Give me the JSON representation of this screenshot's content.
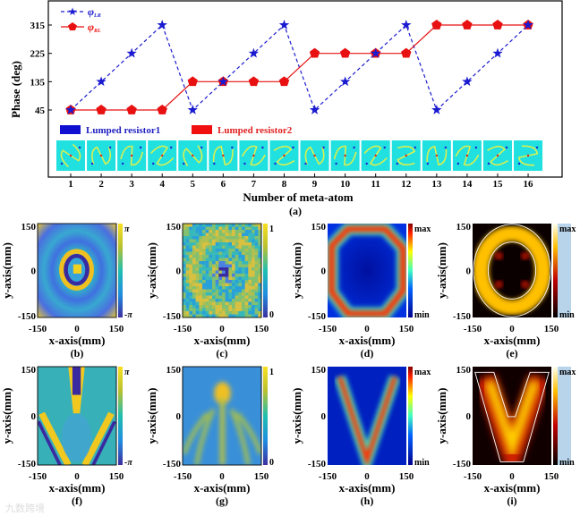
{
  "chart_data": {
    "type": "line",
    "title": "",
    "xlabel": "Number of meta-atom",
    "ylabel": "Phase (deg)",
    "panel_label": "(a)",
    "x": [
      1,
      2,
      3,
      4,
      5,
      6,
      7,
      8,
      9,
      10,
      11,
      12,
      13,
      14,
      15,
      16
    ],
    "yticks": [
      45,
      135,
      225,
      315
    ],
    "ylim": [
      0,
      360
    ],
    "series": [
      {
        "name": "φLR",
        "symbol": "φ",
        "subscript": "LR",
        "color": "#1a1ad0",
        "style": "dashed",
        "marker": "star",
        "values": [
          45,
          135,
          225,
          315,
          45,
          135,
          225,
          315,
          45,
          135,
          225,
          315,
          45,
          135,
          225,
          315
        ]
      },
      {
        "name": "φRL",
        "symbol": "φ",
        "subscript": "RL",
        "color": "#e81010",
        "style": "solid",
        "marker": "pentagon",
        "values": [
          45,
          45,
          45,
          45,
          135,
          135,
          135,
          135,
          225,
          225,
          225,
          225,
          315,
          315,
          315,
          315
        ]
      }
    ],
    "legend_position": "top-left",
    "resistor_legend": [
      {
        "label": "Lumped resistor1",
        "color": "#1010d0"
      },
      {
        "label": "Lumped resistor2",
        "color": "#f01010"
      }
    ]
  },
  "panels": {
    "xlabel": "x-axis(mm)",
    "ylabel": "y-axis(mm)",
    "tick_min": "-150",
    "tick_mid": "0",
    "tick_max": "150",
    "phase_max": "π",
    "phase_min": "-π",
    "amp_max": "1",
    "amp_min": "0",
    "int_max": "max",
    "int_min": "min",
    "labels": [
      "(b)",
      "(c)",
      "(d)",
      "(e)",
      "(f)",
      "(g)",
      "(h)",
      "(i)"
    ]
  },
  "watermark": "九数跨境"
}
